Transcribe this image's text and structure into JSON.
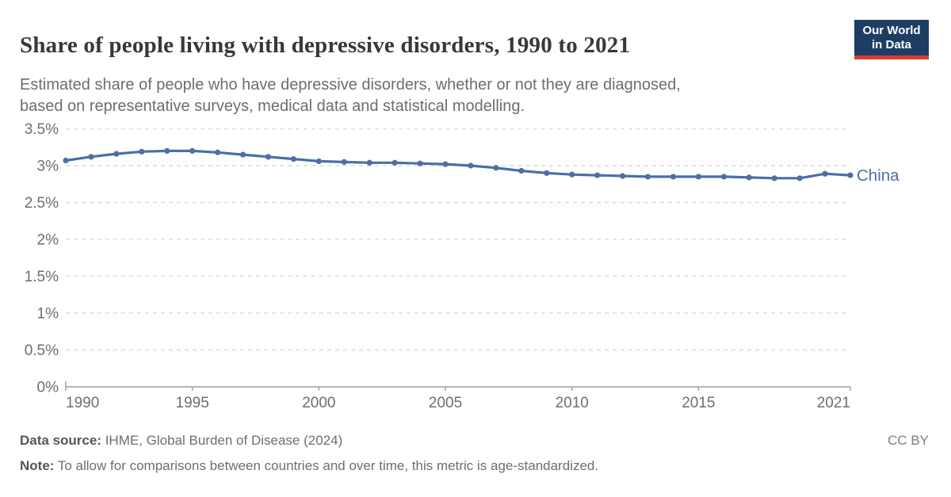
{
  "header": {
    "title": "Share of people living with depressive disorders, 1990 to 2021",
    "subtitle_line1": "Estimated share of people who have depressive disorders, whether or not they are diagnosed,",
    "subtitle_line2": "based on representative surveys, medical data and statistical modelling."
  },
  "logo": {
    "line1": "Our World",
    "line2": "in Data",
    "bg_color": "#1d3d63",
    "bar_color": "#dc3c34"
  },
  "footer": {
    "source_label": "Data source:",
    "source_text": " IHME, Global Burden of Disease (2024)",
    "note_label": "Note:",
    "note_text": " To allow for comparisons between countries and over time, this metric is age-standardized.",
    "license": "CC BY"
  },
  "chart_data": {
    "type": "line",
    "title": "Share of people living with depressive disorders, 1990 to 2021",
    "entity_label": "China",
    "unit": "%",
    "x": [
      1990,
      1991,
      1992,
      1993,
      1994,
      1995,
      1996,
      1997,
      1998,
      1999,
      2000,
      2001,
      2002,
      2003,
      2004,
      2005,
      2006,
      2007,
      2008,
      2009,
      2010,
      2011,
      2012,
      2013,
      2014,
      2015,
      2016,
      2017,
      2018,
      2019,
      2020,
      2021
    ],
    "values": [
      3.07,
      3.12,
      3.16,
      3.19,
      3.2,
      3.2,
      3.18,
      3.15,
      3.12,
      3.09,
      3.06,
      3.05,
      3.04,
      3.04,
      3.03,
      3.02,
      3.0,
      2.97,
      2.93,
      2.9,
      2.88,
      2.87,
      2.86,
      2.85,
      2.85,
      2.85,
      2.85,
      2.84,
      2.83,
      2.83,
      2.89,
      2.87
    ],
    "xlim": [
      1990,
      2021
    ],
    "ylim": [
      0,
      3.5
    ],
    "grid": true,
    "legend_position": "end-of-line",
    "yticks": [
      {
        "v": 0,
        "label": "0%"
      },
      {
        "v": 0.5,
        "label": "0.5%"
      },
      {
        "v": 1,
        "label": "1%"
      },
      {
        "v": 1.5,
        "label": "1.5%"
      },
      {
        "v": 2,
        "label": "2%"
      },
      {
        "v": 2.5,
        "label": "2.5%"
      },
      {
        "v": 3,
        "label": "3%"
      },
      {
        "v": 3.5,
        "label": "3.5%"
      }
    ],
    "xticks": [
      {
        "v": 1990,
        "label": "1990"
      },
      {
        "v": 1995,
        "label": "1995"
      },
      {
        "v": 2000,
        "label": "2000"
      },
      {
        "v": 2005,
        "label": "2005"
      },
      {
        "v": 2010,
        "label": "2010"
      },
      {
        "v": 2015,
        "label": "2015"
      },
      {
        "v": 2021,
        "label": "2021"
      }
    ],
    "line_color": "#4C6FA6",
    "label_color": "#4C6FA6",
    "grid_color": "#dcdcdc",
    "axis_color": "#9e9e9e",
    "tick_text_color": "#6e6e6e"
  }
}
